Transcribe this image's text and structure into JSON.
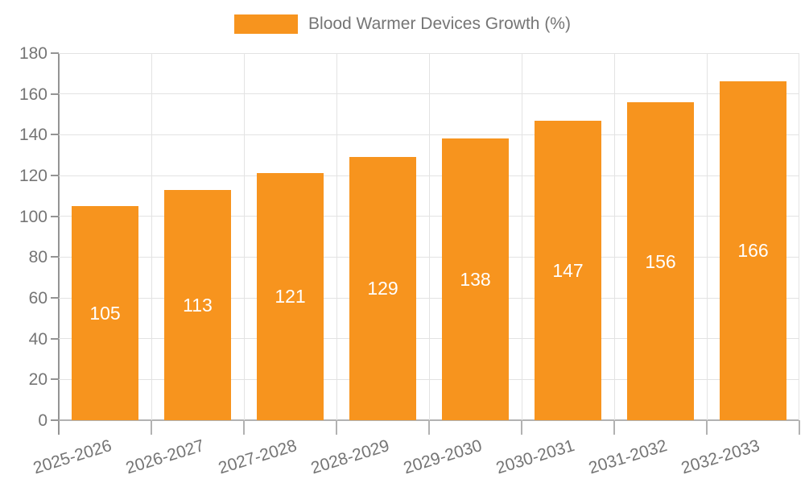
{
  "legend": {
    "label": "Blood Warmer Devices Growth (%)"
  },
  "colors": {
    "bar": "#f7941e",
    "bar_label": "#ffffff",
    "axis_line": "#b2b2b2",
    "y_axis_line": "#949494",
    "gridline": "#e3e3e3",
    "tick_label": "#757575",
    "legend_text": "#757575",
    "background": "#ffffff"
  },
  "chart_data": {
    "type": "bar",
    "title": "Blood Warmer Devices Growth (%)",
    "categories": [
      "2025-2026",
      "2026-2027",
      "2027-2028",
      "2028-2029",
      "2029-2030",
      "2030-2031",
      "2031-2032",
      "2032-2033"
    ],
    "values": [
      105,
      113,
      121,
      129,
      138,
      147,
      156,
      166
    ],
    "xlabel": "",
    "ylabel": "",
    "ylim": [
      0,
      180
    ],
    "yticks": [
      0,
      20,
      40,
      60,
      80,
      100,
      120,
      140,
      160,
      180
    ],
    "grid": true,
    "grid_horizontal": true,
    "grid_vertical": true,
    "legend_position": "top-center",
    "bar_labels_inside": true,
    "x_label_rotation_deg": -17
  }
}
